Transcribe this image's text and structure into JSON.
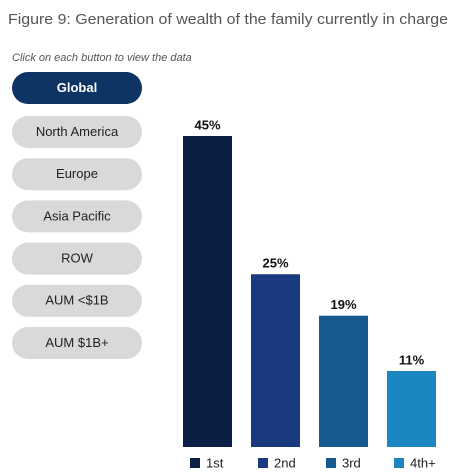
{
  "title": "Figure 9: Generation of wealth of the family currently in charge",
  "subtitle": "Click on each button to view the data",
  "buttons": [
    "Global",
    "North America",
    "Europe",
    "Asia Pacific",
    "ROW",
    "AUM <$1B",
    "AUM $1B+"
  ],
  "selected_button": 0,
  "chart_data": {
    "type": "bar",
    "categories": [
      "1st",
      "2nd",
      "3rd",
      "4th+"
    ],
    "values": [
      45,
      25,
      19,
      11
    ],
    "value_labels": [
      "45%",
      "25%",
      "19%",
      "11%"
    ],
    "colors": [
      "#0b1f44",
      "#1a3a80",
      "#175a8f",
      "#1a87c0"
    ]
  }
}
